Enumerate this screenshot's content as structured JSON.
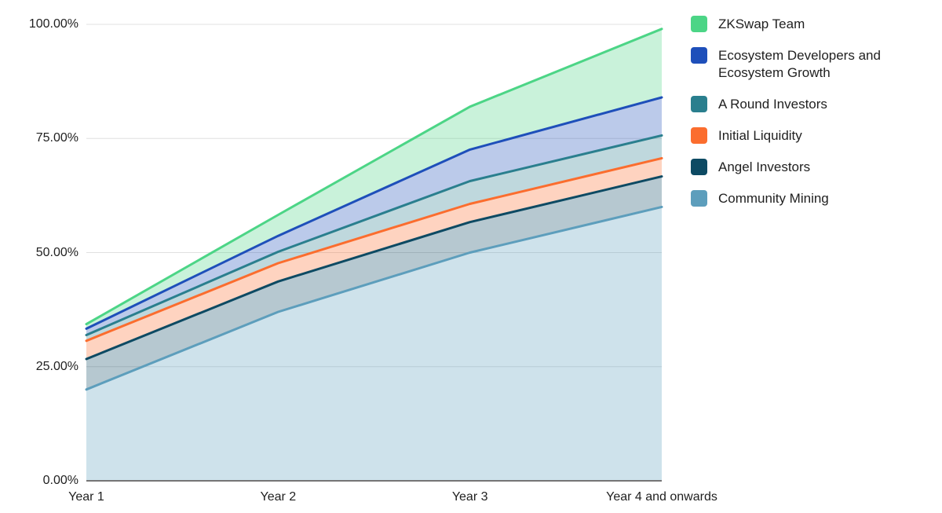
{
  "chart_data": {
    "type": "area",
    "stacked": true,
    "title": "",
    "xlabel": "",
    "ylabel": "",
    "categories": [
      "Year 1",
      "Year 2",
      "Year 3",
      "Year 4 and onwards"
    ],
    "y_axis": {
      "ticks": [
        "0.00%",
        "25.00%",
        "50.00%",
        "75.00%",
        "100.00%"
      ],
      "tick_values": [
        0,
        25,
        50,
        75,
        100
      ],
      "min": 0,
      "max": 100,
      "format": "percent"
    },
    "ylim": [
      0,
      100
    ],
    "grid": true,
    "legend_position": "right",
    "series": [
      {
        "name": "Community Mining",
        "color": "#5D9EBC",
        "values": [
          20,
          37,
          50,
          60
        ]
      },
      {
        "name": "Angel Investors",
        "color": "#0D4A63",
        "values": [
          6.67,
          6.67,
          6.67,
          6.67
        ]
      },
      {
        "name": "Initial Liquidity",
        "color": "#FB6D2E",
        "values": [
          4,
          4,
          4,
          4
        ]
      },
      {
        "name": "A Round Investors",
        "color": "#2A7F8E",
        "values": [
          1.25,
          2.5,
          5,
          5
        ]
      },
      {
        "name": "Ecosystem Developers and Ecosystem Growth",
        "color": "#1E4FBA",
        "values": [
          1.4,
          3.5,
          6.9,
          8.33
        ]
      },
      {
        "name": "ZKSwap Team",
        "color": "#4CD586",
        "values": [
          1,
          4.6,
          9.4,
          15
        ]
      }
    ],
    "stack_totals": [
      34.32,
      58.27,
      81.97,
      99.0
    ]
  },
  "colors": {
    "background": "#FFFFFF",
    "gridline": "#E0E0E0",
    "axis_line": "#757575",
    "text": "#1F1F1F",
    "area_fill_opacity": "0.3"
  }
}
